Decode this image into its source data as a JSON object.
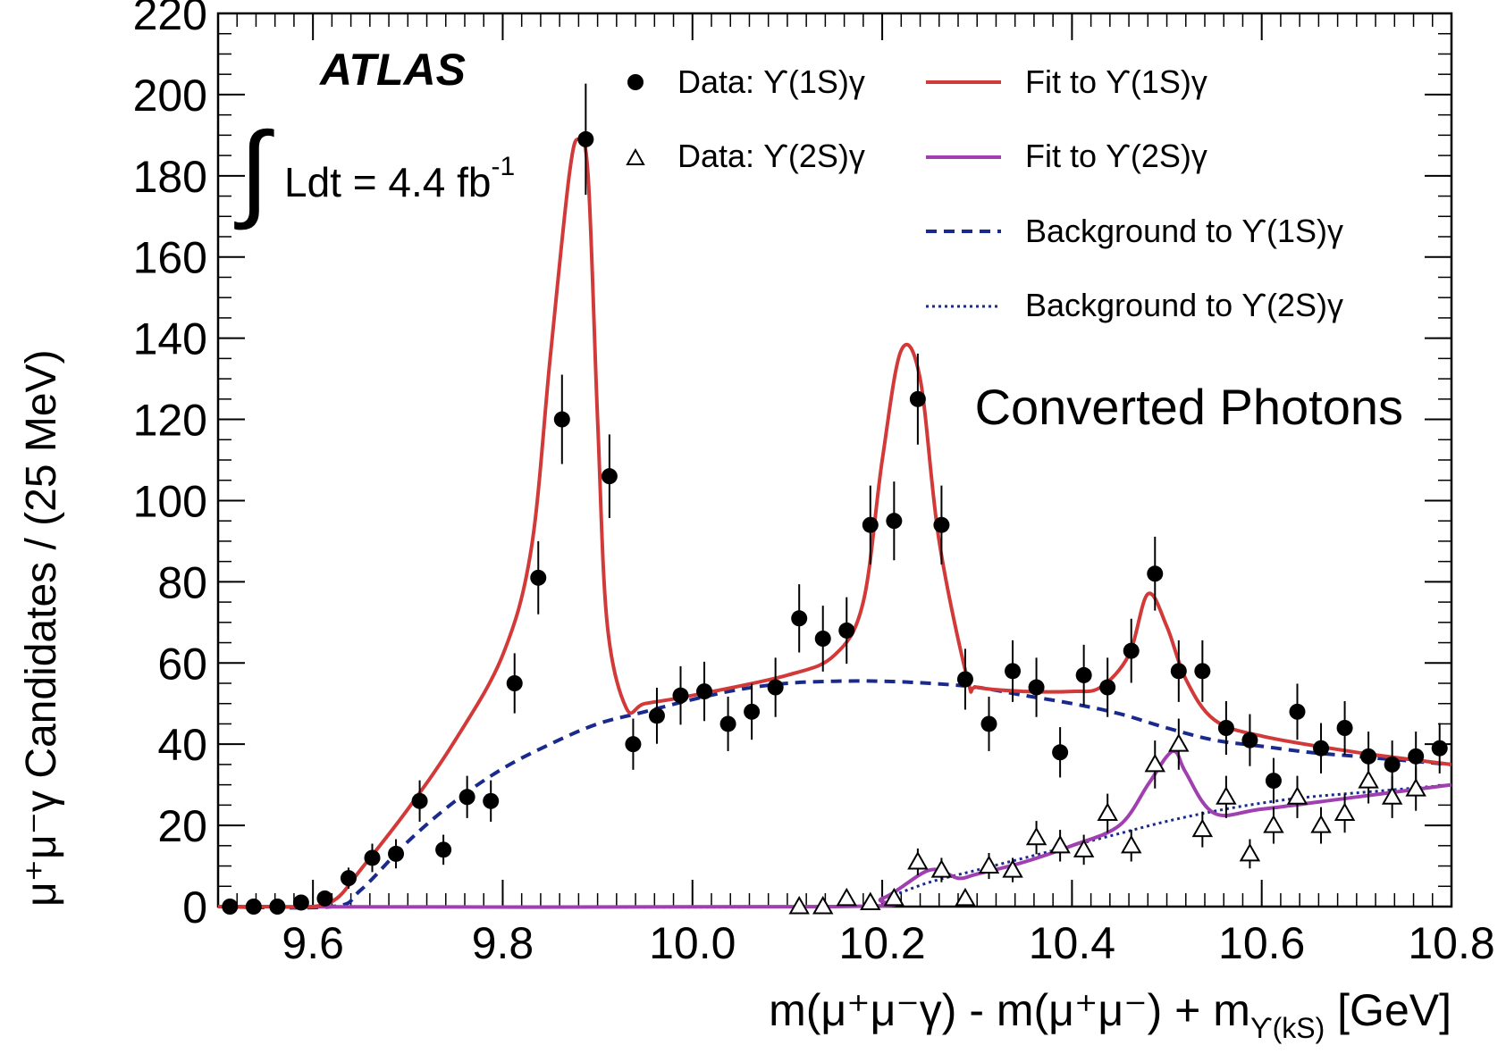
{
  "chart_data": {
    "type": "scatter",
    "title": "",
    "experiment_label": "ATLAS",
    "luminosity": {
      "text": "Ldt = 4.4 fb",
      "exponent": "-1"
    },
    "category_label": "Converted Photons",
    "xlabel": {
      "main": "m(μ⁺μ⁻γ) - m(μ⁺μ⁻) + m",
      "subscript": "ϒ(kS)",
      "unit": "[GeV]"
    },
    "ylabel": "μ⁺μ⁻γ Candidates / (25 MeV)",
    "xlim": [
      9.5,
      10.8
    ],
    "ylim": [
      0,
      220
    ],
    "x_ticks": [
      "9.6",
      "9.8",
      "10.0",
      "10.2",
      "10.4",
      "10.6",
      "10.8"
    ],
    "y_ticks": [
      "0",
      "20",
      "40",
      "60",
      "80",
      "100",
      "120",
      "140",
      "160",
      "180",
      "200",
      "220"
    ],
    "colors": {
      "fit_1s": "#d23a3a",
      "fit_2s": "#a040b0",
      "background": "#1a2a8c",
      "data": "#000000"
    },
    "legend": {
      "placement": "top-right",
      "entries": [
        {
          "label": "Data: ϒ(1S)γ",
          "style": "filled-circle"
        },
        {
          "label": "Data: ϒ(2S)γ",
          "style": "open-triangle"
        },
        {
          "label": "Fit to ϒ(1S)γ",
          "style": "solid-red"
        },
        {
          "label": "Fit to ϒ(2S)γ",
          "style": "solid-purple"
        },
        {
          "label": "Background to ϒ(1S)γ",
          "style": "dashed-blue"
        },
        {
          "label": "Background to ϒ(2S)γ",
          "style": "dotted-blue"
        }
      ]
    },
    "series": [
      {
        "name": "Data: ϒ(1S)γ",
        "marker": "filled-circle",
        "x": [
          9.5125,
          9.5375,
          9.5625,
          9.5875,
          9.6125,
          9.6375,
          9.6625,
          9.6875,
          9.7125,
          9.7375,
          9.7625,
          9.7875,
          9.8125,
          9.8375,
          9.8625,
          9.8875,
          9.9125,
          9.9375,
          9.9625,
          9.9875,
          10.0125,
          10.0375,
          10.0625,
          10.0875,
          10.1125,
          10.1375,
          10.1625,
          10.1875,
          10.2125,
          10.2375,
          10.2625,
          10.2875,
          10.3125,
          10.3375,
          10.3625,
          10.3875,
          10.4125,
          10.4375,
          10.4625,
          10.4875,
          10.5125,
          10.5375,
          10.5625,
          10.5875,
          10.6125,
          10.6375,
          10.6625,
          10.6875,
          10.7125,
          10.7375,
          10.7625,
          10.7875
        ],
        "y": [
          0,
          0,
          0,
          1,
          2,
          7,
          12,
          13,
          26,
          14,
          27,
          26,
          55,
          81,
          120,
          189,
          106,
          40,
          47,
          52,
          53,
          45,
          48,
          54,
          71,
          66,
          68,
          94,
          95,
          125,
          94,
          56,
          45,
          58,
          54,
          38,
          57,
          54,
          63,
          82,
          58,
          58,
          44,
          41,
          31,
          48,
          39,
          44,
          37,
          35,
          37,
          39
        ],
        "err": [
          0.5,
          0.5,
          0.5,
          1,
          1.4,
          2.6,
          3.5,
          3.6,
          5.1,
          3.7,
          5.2,
          5.1,
          7.4,
          9,
          11,
          13.7,
          10.3,
          6.3,
          6.9,
          7.2,
          7.3,
          6.7,
          6.9,
          7.3,
          8.4,
          8.1,
          8.2,
          9.7,
          9.7,
          11.2,
          9.7,
          7.5,
          6.7,
          7.6,
          7.3,
          6.2,
          7.5,
          7.3,
          7.9,
          9.1,
          7.6,
          7.6,
          6.6,
          6.4,
          5.6,
          6.9,
          6.2,
          6.6,
          6.1,
          5.9,
          6.1,
          6.2
        ]
      },
      {
        "name": "Data: ϒ(2S)γ",
        "marker": "open-triangle",
        "x": [
          10.1125,
          10.1375,
          10.1625,
          10.1875,
          10.2125,
          10.2375,
          10.2625,
          10.2875,
          10.3125,
          10.3375,
          10.3625,
          10.3875,
          10.4125,
          10.4375,
          10.4625,
          10.4875,
          10.5125,
          10.5375,
          10.5625,
          10.5875,
          10.6125,
          10.6375,
          10.6625,
          10.6875,
          10.7125,
          10.7375,
          10.7625
        ],
        "y": [
          0,
          0,
          2,
          1,
          2,
          11,
          9,
          2,
          10,
          9,
          17,
          15,
          14,
          23,
          15,
          35,
          40,
          19,
          27,
          13,
          20,
          27,
          20,
          23,
          31,
          27,
          29
        ],
        "err": [
          0.5,
          0.5,
          1.4,
          1,
          1.4,
          3.3,
          3,
          1.4,
          3.2,
          3,
          4.1,
          3.9,
          3.7,
          4.8,
          3.9,
          5.9,
          6.3,
          4.4,
          5.2,
          3.6,
          4.5,
          5.2,
          4.5,
          4.8,
          5.6,
          5.2,
          5.4
        ]
      },
      {
        "name": "Fit to ϒ(1S)γ",
        "line": "solid",
        "x": [
          9.5,
          9.55,
          9.6,
          9.625,
          9.65,
          9.7,
          9.75,
          9.8,
          9.83,
          9.85,
          9.87,
          9.88,
          9.89,
          9.9,
          9.91,
          9.93,
          9.95,
          10.0,
          10.1,
          10.15,
          10.18,
          10.2,
          10.22,
          10.24,
          10.26,
          10.29,
          10.3,
          10.35,
          10.4,
          10.43,
          10.46,
          10.48,
          10.5,
          10.52,
          10.55,
          10.6,
          10.7,
          10.8
        ],
        "y": [
          0,
          0,
          0,
          2,
          9,
          24,
          41,
          62,
          88,
          135,
          180,
          189,
          180,
          120,
          70,
          49,
          50,
          52,
          57,
          62,
          75,
          110,
          137,
          130,
          90,
          56,
          54,
          53,
          53,
          54,
          62,
          77,
          69,
          56,
          46,
          42,
          38,
          35
        ]
      },
      {
        "name": "Fit to ϒ(2S)γ",
        "line": "solid",
        "x": [
          9.5,
          10.15,
          10.2,
          10.25,
          10.28,
          10.3,
          10.35,
          10.4,
          10.45,
          10.48,
          10.5,
          10.51,
          10.52,
          10.55,
          10.6,
          10.7,
          10.8
        ],
        "y": [
          0,
          0,
          2,
          9,
          7,
          8,
          11,
          15,
          20,
          30,
          37,
          38,
          33,
          23,
          24,
          27,
          30
        ]
      },
      {
        "name": "Background to ϒ(1S)γ",
        "line": "dashed",
        "x": [
          9.5,
          9.62,
          9.65,
          9.7,
          9.75,
          9.8,
          9.85,
          9.9,
          9.95,
          10.0,
          10.05,
          10.1,
          10.15,
          10.2,
          10.25,
          10.3,
          10.35,
          10.4,
          10.45,
          10.5,
          10.55,
          10.6,
          10.65,
          10.7,
          10.8
        ],
        "y": [
          0,
          0,
          4,
          16,
          26,
          34,
          40,
          45,
          48,
          51,
          53.5,
          55,
          55.5,
          55.5,
          55,
          54,
          52,
          50,
          47.5,
          44,
          41,
          39.5,
          38,
          37,
          35
        ]
      },
      {
        "name": "Background to ϒ(2S)γ",
        "line": "dotted",
        "x": [
          9.5,
          10.15,
          10.2,
          10.25,
          10.3,
          10.35,
          10.4,
          10.45,
          10.5,
          10.55,
          10.6,
          10.65,
          10.7,
          10.8
        ],
        "y": [
          0,
          0,
          2,
          6,
          9,
          12,
          15,
          18,
          21,
          23.5,
          25.5,
          27,
          28,
          30
        ]
      }
    ]
  }
}
